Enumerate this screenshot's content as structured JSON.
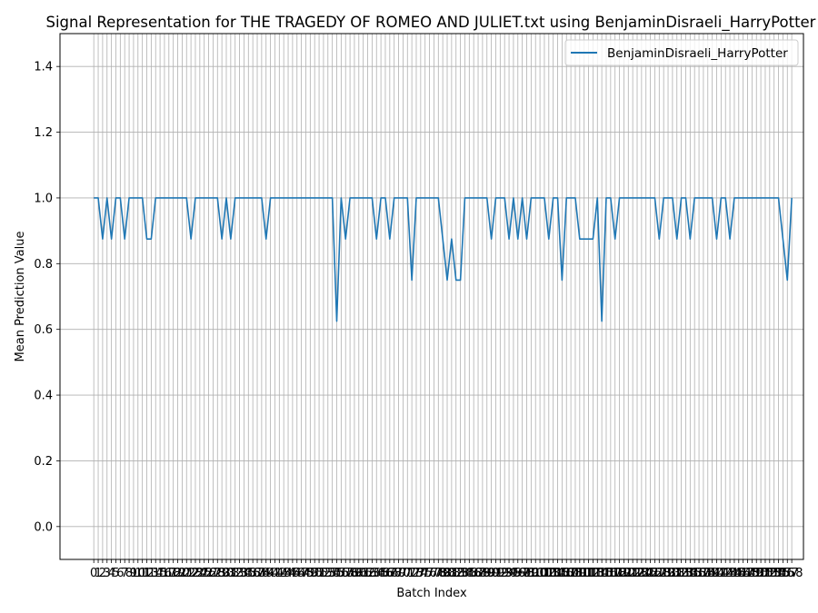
{
  "chart_data": {
    "type": "line",
    "title": "Signal Representation for THE TRAGEDY OF ROMEO AND JULIET.txt using BenjaminDisraeli_HarryPotter",
    "xlabel": "Batch Index",
    "ylabel": "Mean Prediction Value",
    "xlim": [
      -7.65,
      160.65
    ],
    "ylim": [
      -0.1,
      1.5
    ],
    "yticks": [
      0.0,
      0.2,
      0.4,
      0.6,
      0.8,
      1.0,
      1.2,
      1.4
    ],
    "ytick_labels": [
      "0.0",
      "0.2",
      "0.4",
      "0.6",
      "0.8",
      "1.0",
      "1.2",
      "1.4"
    ],
    "grid": true,
    "legend": "top-right",
    "series": [
      {
        "name": "BenjaminDisraeli_HarryPotter",
        "color": "#1f77b4",
        "x_start": 0,
        "values": [
          1.0,
          1.0,
          0.875,
          1.0,
          0.875,
          1.0,
          1.0,
          0.875,
          1.0,
          1.0,
          1.0,
          1.0,
          0.875,
          0.875,
          1.0,
          1.0,
          1.0,
          1.0,
          1.0,
          1.0,
          1.0,
          1.0,
          0.875,
          1.0,
          1.0,
          1.0,
          1.0,
          1.0,
          1.0,
          0.875,
          1.0,
          0.875,
          1.0,
          1.0,
          1.0,
          1.0,
          1.0,
          1.0,
          1.0,
          0.875,
          1.0,
          1.0,
          1.0,
          1.0,
          1.0,
          1.0,
          1.0,
          1.0,
          1.0,
          1.0,
          1.0,
          1.0,
          1.0,
          1.0,
          1.0,
          0.625,
          1.0,
          0.875,
          1.0,
          1.0,
          1.0,
          1.0,
          1.0,
          1.0,
          0.875,
          1.0,
          1.0,
          0.875,
          1.0,
          1.0,
          1.0,
          1.0,
          0.75,
          1.0,
          1.0,
          1.0,
          1.0,
          1.0,
          1.0,
          0.875,
          0.75,
          0.875,
          0.75,
          0.75,
          1.0,
          1.0,
          1.0,
          1.0,
          1.0,
          1.0,
          0.875,
          1.0,
          1.0,
          1.0,
          0.875,
          1.0,
          0.875,
          1.0,
          0.875,
          1.0,
          1.0,
          1.0,
          1.0,
          0.875,
          1.0,
          1.0,
          0.75,
          1.0,
          1.0,
          1.0,
          0.875,
          0.875,
          0.875,
          0.875,
          1.0,
          0.625,
          1.0,
          1.0,
          0.875,
          1.0,
          1.0,
          1.0,
          1.0,
          1.0,
          1.0,
          1.0,
          1.0,
          1.0,
          0.875,
          1.0,
          1.0,
          1.0,
          0.875,
          1.0,
          1.0,
          0.875,
          1.0,
          1.0,
          1.0,
          1.0,
          1.0,
          0.875,
          1.0,
          1.0,
          0.875,
          1.0,
          1.0,
          1.0,
          1.0,
          1.0,
          1.0,
          1.0,
          1.0,
          1.0,
          1.0,
          1.0,
          0.875,
          0.75,
          1.0
        ]
      }
    ]
  }
}
